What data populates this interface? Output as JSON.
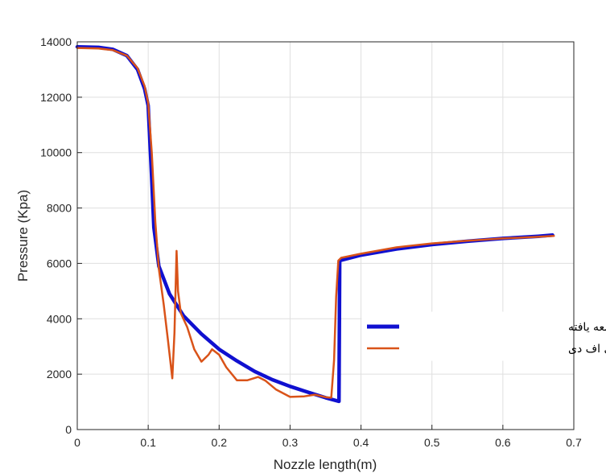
{
  "chart_data": {
    "type": "line",
    "xlabel": "Nozzle length(m)",
    "ylabel": "Pressure (Kpa)",
    "xlim": [
      0,
      0.7
    ],
    "ylim": [
      0,
      14000
    ],
    "xticks": [
      "0",
      "0.1",
      "0.2",
      "0.3",
      "0.4",
      "0.5",
      "0.6",
      "0.7"
    ],
    "yticks": [
      "0",
      "2000",
      "4000",
      "6000",
      "8000",
      "10000",
      "12000",
      "14000"
    ],
    "grid": true,
    "legend_position": "right",
    "series": [
      {
        "name": "نتایج روش توسعه یافته",
        "color": "#1010d0",
        "points": [
          [
            0,
            13820
          ],
          [
            0.03,
            13800
          ],
          [
            0.05,
            13730
          ],
          [
            0.07,
            13500
          ],
          [
            0.085,
            13000
          ],
          [
            0.095,
            12300
          ],
          [
            0.1,
            11700
          ],
          [
            0.105,
            9000
          ],
          [
            0.108,
            7300
          ],
          [
            0.115,
            5900
          ],
          [
            0.13,
            4900
          ],
          [
            0.15,
            4100
          ],
          [
            0.175,
            3450
          ],
          [
            0.2,
            2900
          ],
          [
            0.225,
            2480
          ],
          [
            0.25,
            2100
          ],
          [
            0.275,
            1800
          ],
          [
            0.3,
            1560
          ],
          [
            0.325,
            1350
          ],
          [
            0.35,
            1150
          ],
          [
            0.369,
            1020
          ],
          [
            0.37,
            6100
          ],
          [
            0.4,
            6300
          ],
          [
            0.45,
            6520
          ],
          [
            0.5,
            6680
          ],
          [
            0.55,
            6800
          ],
          [
            0.6,
            6900
          ],
          [
            0.65,
            6980
          ],
          [
            0.67,
            7020
          ]
        ]
      },
      {
        "name": "نتایج شبیه سازی سی اف دی",
        "color": "#d95319",
        "points": [
          [
            0,
            13780
          ],
          [
            0.03,
            13760
          ],
          [
            0.05,
            13700
          ],
          [
            0.07,
            13500
          ],
          [
            0.085,
            13050
          ],
          [
            0.095,
            12400
          ],
          [
            0.1,
            11800
          ],
          [
            0.105,
            10000
          ],
          [
            0.11,
            7500
          ],
          [
            0.115,
            5800
          ],
          [
            0.122,
            4500
          ],
          [
            0.128,
            3200
          ],
          [
            0.134,
            1850
          ],
          [
            0.137,
            3500
          ],
          [
            0.14,
            6450
          ],
          [
            0.142,
            5000
          ],
          [
            0.146,
            4200
          ],
          [
            0.155,
            3700
          ],
          [
            0.165,
            2900
          ],
          [
            0.175,
            2450
          ],
          [
            0.185,
            2700
          ],
          [
            0.19,
            2900
          ],
          [
            0.2,
            2700
          ],
          [
            0.21,
            2250
          ],
          [
            0.225,
            1780
          ],
          [
            0.24,
            1780
          ],
          [
            0.255,
            1900
          ],
          [
            0.265,
            1770
          ],
          [
            0.28,
            1450
          ],
          [
            0.3,
            1180
          ],
          [
            0.32,
            1200
          ],
          [
            0.335,
            1260
          ],
          [
            0.35,
            1170
          ],
          [
            0.358,
            1150
          ],
          [
            0.362,
            2500
          ],
          [
            0.365,
            4800
          ],
          [
            0.368,
            6100
          ],
          [
            0.372,
            6200
          ],
          [
            0.4,
            6350
          ],
          [
            0.45,
            6580
          ],
          [
            0.5,
            6720
          ],
          [
            0.55,
            6820
          ],
          [
            0.6,
            6900
          ],
          [
            0.65,
            6960
          ],
          [
            0.672,
            6990
          ]
        ]
      }
    ]
  }
}
